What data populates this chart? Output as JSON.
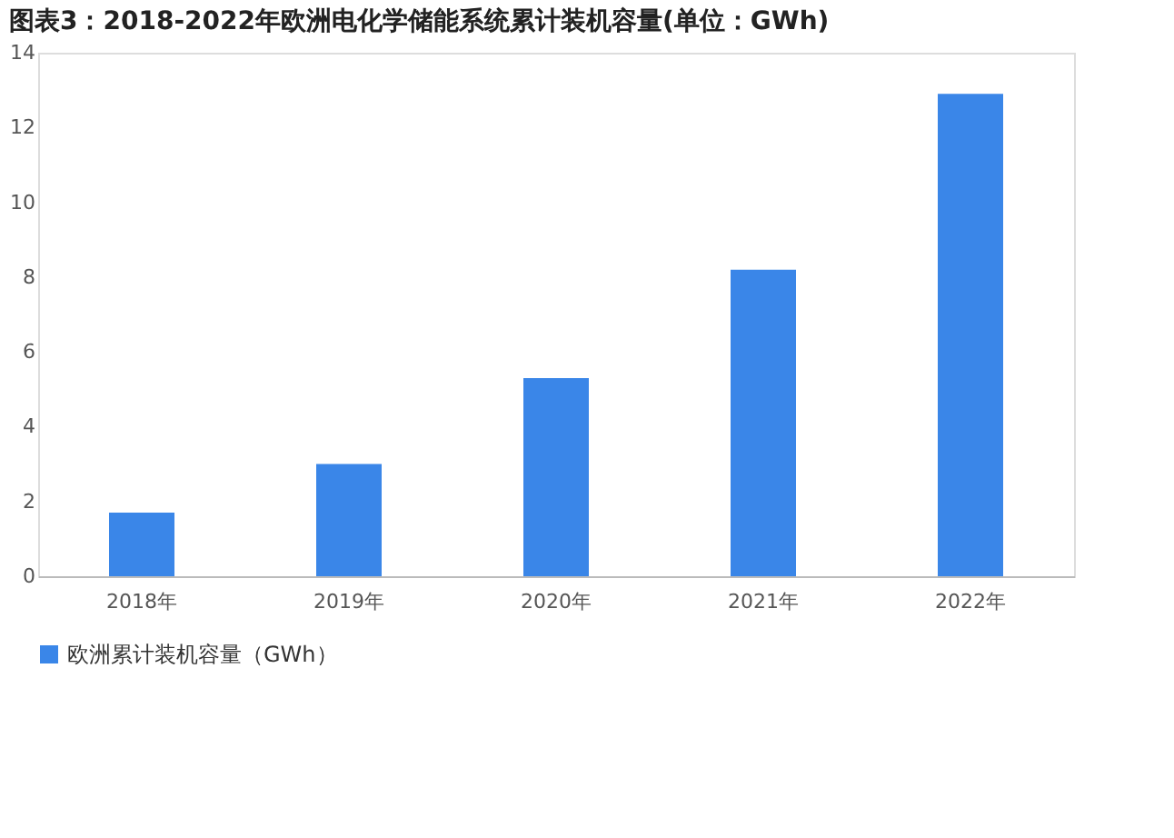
{
  "chart_data": {
    "type": "bar",
    "title": "图表3：2018-2022年欧洲电化学储能系统累计装机容量(单位：GWh)",
    "categories": [
      "2018年",
      "2019年",
      "2020年",
      "2021年",
      "2022年"
    ],
    "series": [
      {
        "name": "欧洲累计装机容量（GWh）",
        "color": "#3a86e8",
        "values": [
          1.7,
          3.0,
          5.3,
          8.2,
          12.9
        ]
      }
    ],
    "ylim": [
      0,
      14
    ],
    "yticks": [
      0,
      2,
      4,
      6,
      8,
      10,
      12,
      14
    ],
    "grid": false,
    "legend": "bottom"
  }
}
